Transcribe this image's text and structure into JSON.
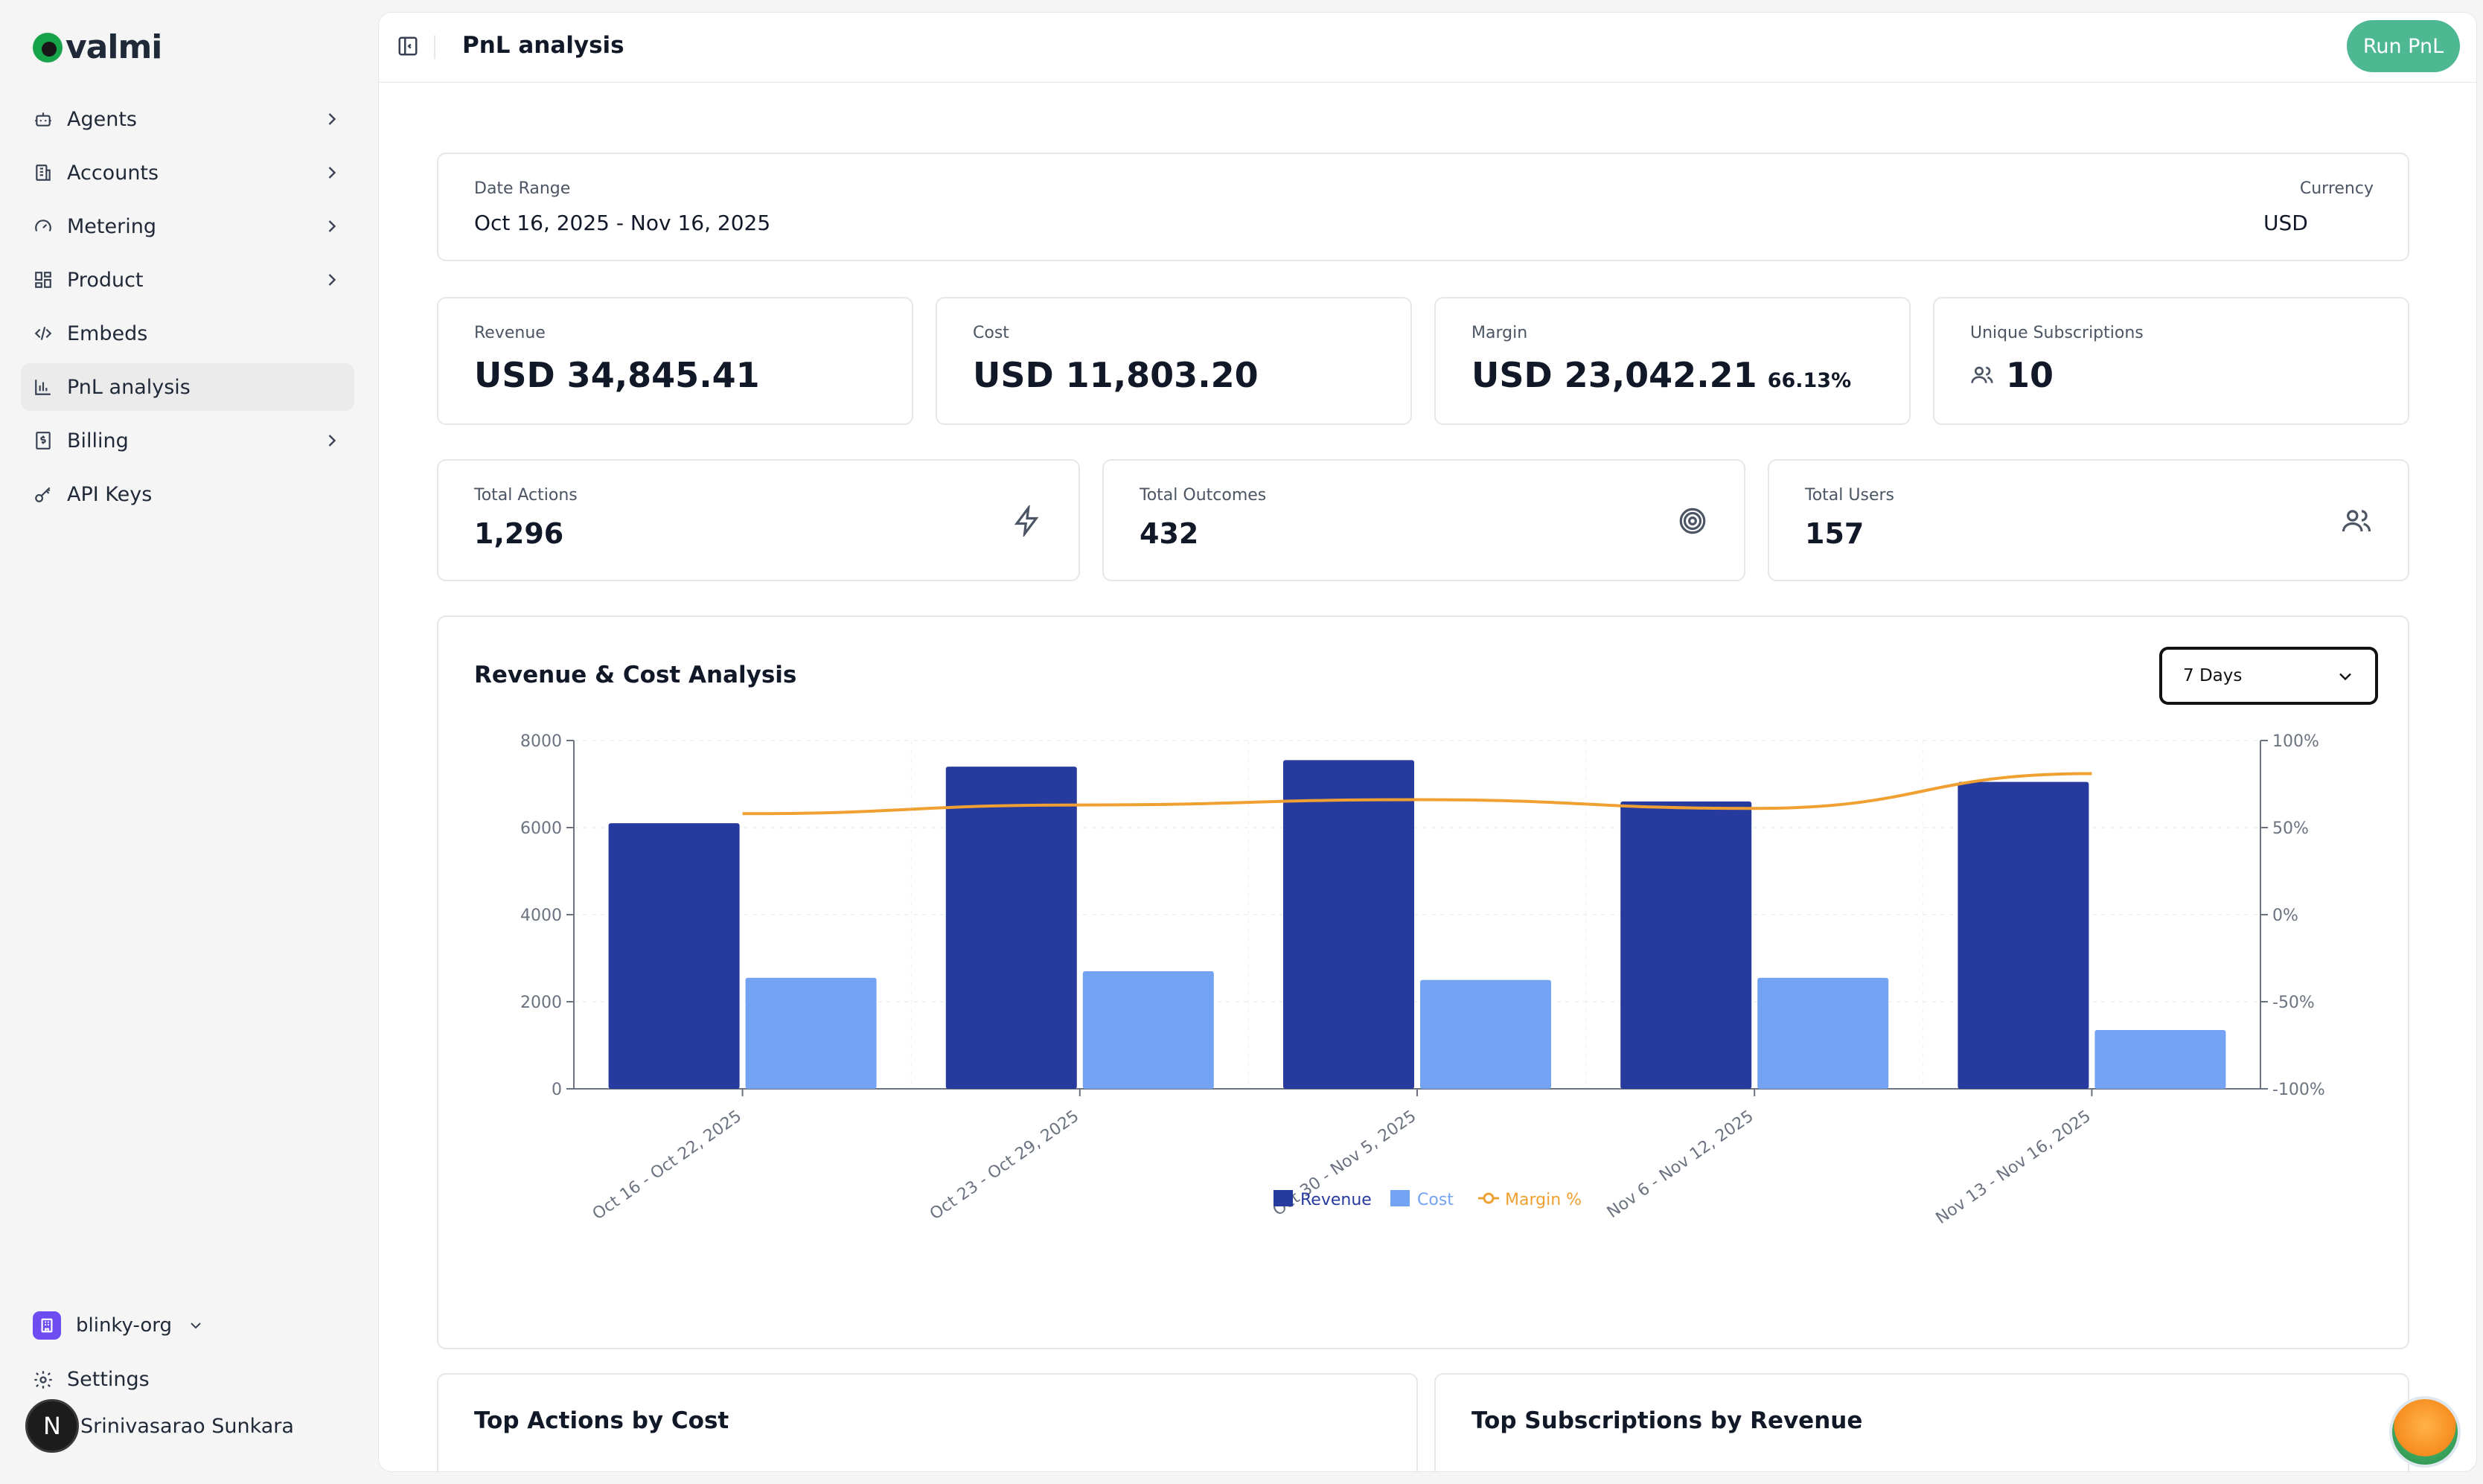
{
  "app": {
    "name": "valmi"
  },
  "sidebar": {
    "items": [
      {
        "label": "Agents",
        "icon": "bot-icon",
        "chevron": true
      },
      {
        "label": "Accounts",
        "icon": "building-icon",
        "chevron": true
      },
      {
        "label": "Metering",
        "icon": "gauge-icon",
        "chevron": true
      },
      {
        "label": "Product",
        "icon": "grid-icon",
        "chevron": true
      },
      {
        "label": "Embeds",
        "icon": "code-icon",
        "chevron": false
      },
      {
        "label": "PnL analysis",
        "icon": "bar-chart-icon",
        "chevron": false,
        "active": true
      },
      {
        "label": "Billing",
        "icon": "receipt-icon",
        "chevron": true
      },
      {
        "label": "API Keys",
        "icon": "key-icon",
        "chevron": false
      }
    ],
    "org": "blinky-org",
    "settings": "Settings",
    "user": {
      "initial": "N",
      "name": "Srinivasarao Sunkara"
    }
  },
  "header": {
    "title": "PnL analysis",
    "run_button": "Run PnL"
  },
  "filters": {
    "date_range_label": "Date Range",
    "date_range_value": "Oct 16, 2025 - Nov 16, 2025",
    "currency_label": "Currency",
    "currency_value": "USD"
  },
  "kpis": {
    "revenue": {
      "label": "Revenue",
      "value": "USD 34,845.41"
    },
    "cost": {
      "label": "Cost",
      "value": "USD 11,803.20"
    },
    "margin": {
      "label": "Margin",
      "value": "USD 23,042.21",
      "percent": "66.13%"
    },
    "subscriptions": {
      "label": "Unique Subscriptions",
      "value": "10"
    },
    "actions": {
      "label": "Total Actions",
      "value": "1,296"
    },
    "outcomes": {
      "label": "Total Outcomes",
      "value": "432"
    },
    "users": {
      "label": "Total Users",
      "value": "157"
    }
  },
  "chart": {
    "title": "Revenue & Cost Analysis",
    "range_select": "7 Days"
  },
  "chart_data": {
    "type": "bar",
    "categories": [
      "Oct 16 - Oct 22, 2025",
      "Oct 23 - Oct 29, 2025",
      "Oct 30 - Nov 5, 2025",
      "Nov 6 - Nov 12, 2025",
      "Nov 13 - Nov 16, 2025"
    ],
    "series": [
      {
        "name": "Revenue",
        "type": "bar",
        "axis": "left",
        "color": "#273a9e",
        "values": [
          6100,
          7400,
          7550,
          6600,
          7050
        ]
      },
      {
        "name": "Cost",
        "type": "bar",
        "axis": "left",
        "color": "#73a3f2",
        "values": [
          2550,
          2700,
          2500,
          2550,
          1350
        ]
      },
      {
        "name": "Margin %",
        "type": "line",
        "axis": "right",
        "color": "#f0a030",
        "values": [
          58,
          63,
          66,
          61,
          81
        ]
      }
    ],
    "ylim": [
      0,
      8000
    ],
    "yticks": [
      "0",
      "2000",
      "4000",
      "6000",
      "8000"
    ],
    "y2lim": [
      -100,
      100
    ],
    "y2ticks": [
      "-100%",
      "-50%",
      "0%",
      "50%",
      "100%"
    ],
    "legend": "bottom",
    "grid": true
  },
  "bottom": {
    "left_title": "Top Actions by Cost",
    "right_title": "Top Subscriptions by Revenue"
  }
}
